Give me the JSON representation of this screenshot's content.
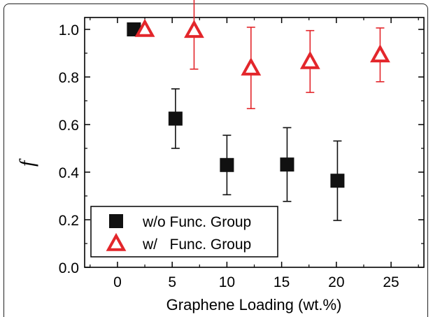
{
  "chart_data": {
    "type": "scatter",
    "xlabel": "Graphene Loading (wt.%)",
    "ylabel": "f",
    "xlim": [
      -3,
      28
    ],
    "ylim": [
      0.0,
      1.05
    ],
    "x_ticks": [
      0,
      5,
      10,
      15,
      20,
      25
    ],
    "y_ticks": [
      0.0,
      0.2,
      0.4,
      0.6,
      0.8,
      1.0
    ],
    "x_tick_labels": [
      "0",
      "5",
      "10",
      "15",
      "20",
      "25"
    ],
    "y_tick_labels": [
      "0.0",
      "0.2",
      "0.4",
      "0.6",
      "0.8",
      "1.0"
    ],
    "legend_position": "bottom-left",
    "series": [
      {
        "name": "w/o Func. Group",
        "marker": "square",
        "color": "#111111",
        "points": [
          {
            "x": 1.5,
            "y": 1.0,
            "err": null
          },
          {
            "x": 5.3,
            "y": 0.625,
            "err": 0.125
          },
          {
            "x": 10.0,
            "y": 0.43,
            "err": 0.125
          },
          {
            "x": 15.5,
            "y": 0.432,
            "err": 0.155
          },
          {
            "x": 20.1,
            "y": 0.364,
            "err": 0.167
          }
        ]
      },
      {
        "name": "w/   Func. Group",
        "marker": "triangle",
        "color": "#e3262b",
        "points": [
          {
            "x": 2.5,
            "y": 1.0,
            "err": null
          },
          {
            "x": 7.0,
            "y": 0.996,
            "err": 0.163
          },
          {
            "x": 12.2,
            "y": 0.838,
            "err": 0.171
          },
          {
            "x": 17.6,
            "y": 0.865,
            "err": 0.13
          },
          {
            "x": 24.0,
            "y": 0.893,
            "err": 0.113
          }
        ]
      }
    ]
  }
}
